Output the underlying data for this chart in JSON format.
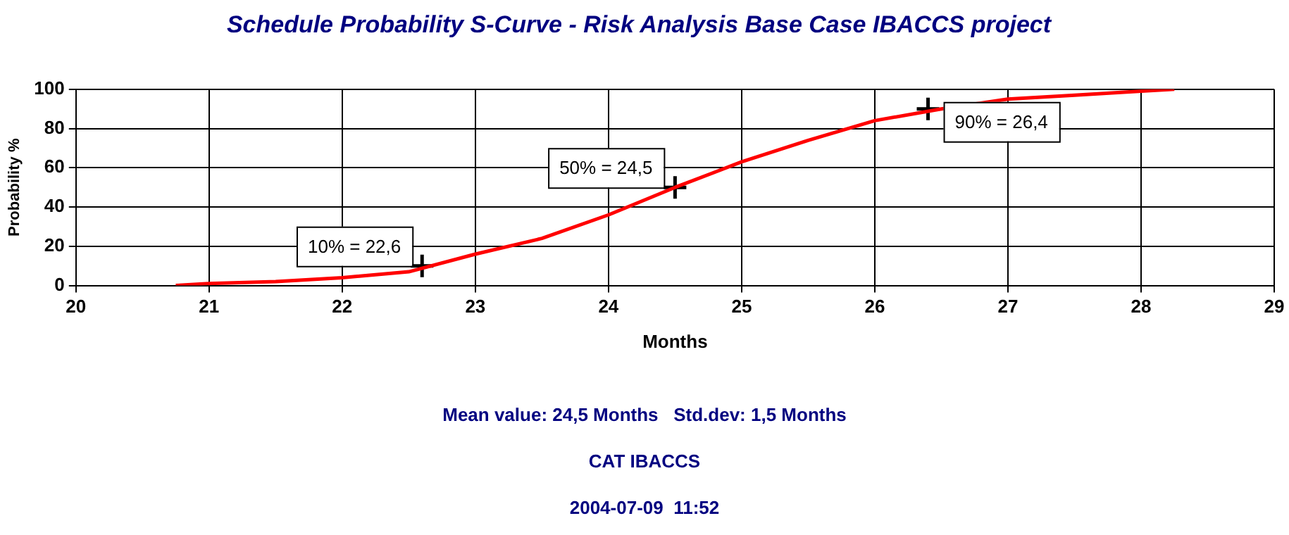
{
  "chart_data": {
    "type": "line",
    "title": "Schedule Probability S-Curve - Risk Analysis Base Case IBACCS project",
    "xlabel": "Months",
    "ylabel": "Probability %",
    "xlim": [
      20,
      29
    ],
    "xticks": [
      20,
      21,
      22,
      23,
      24,
      25,
      26,
      27,
      28,
      29
    ],
    "ylim": [
      0,
      100
    ],
    "yticks": [
      0,
      20,
      40,
      60,
      80,
      100
    ],
    "grid": true,
    "legend": false,
    "series": [
      {
        "type": "line",
        "color": "#ff0000",
        "marker": "none",
        "line_style": "solid",
        "x": [
          20.75,
          21,
          21.5,
          22,
          22.5,
          23,
          23.5,
          24,
          24.5,
          25,
          25.5,
          26,
          26.5,
          27,
          27.5,
          28,
          28.25
        ],
        "values": [
          0,
          1,
          2,
          4,
          7,
          16,
          24,
          36,
          50,
          63,
          74,
          84,
          90,
          95,
          97,
          99,
          100
        ]
      },
      {
        "type": "scatter",
        "color": "#000000",
        "marker": "cross",
        "x": [
          22.6,
          24.5,
          26.4
        ],
        "values": [
          10,
          50,
          90
        ]
      }
    ],
    "annotations": [
      {
        "text": "10% = 22,6",
        "x": 22.6,
        "y": 10
      },
      {
        "text": "50% = 24,5",
        "x": 24.5,
        "y": 50
      },
      {
        "text": "90% = 26,4",
        "x": 26.4,
        "y": 90
      },
      "Mean value: 24,5 Months   Std.dev: 1,5 Months",
      "CAT IBACCS",
      "2004-07-09  11:52"
    ]
  }
}
